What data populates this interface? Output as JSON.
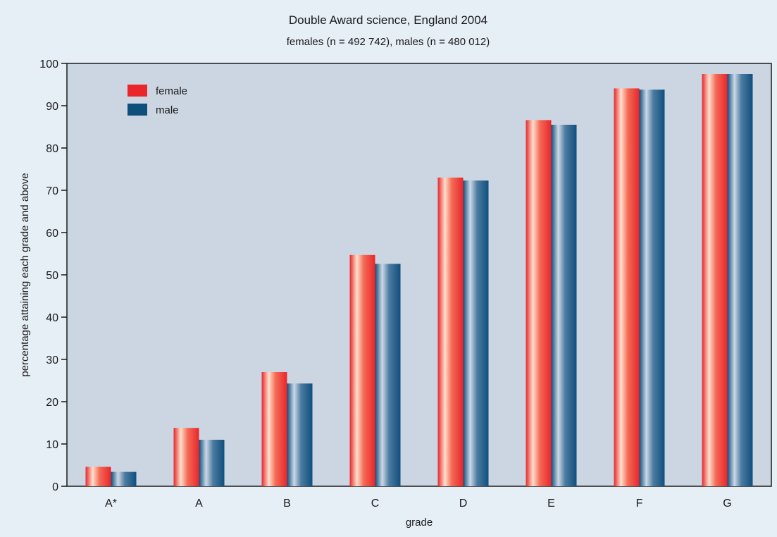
{
  "chart_data": {
    "type": "bar",
    "title": "Double Award science, England 2004",
    "subtitle": "females (n = 492 742), males (n = 480 012)",
    "xlabel": "grade",
    "ylabel": "percentage attaining each grade and above",
    "categories": [
      "A*",
      "A",
      "B",
      "C",
      "D",
      "E",
      "F",
      "G"
    ],
    "series": [
      {
        "name": "female",
        "color": "#e8262b",
        "values": [
          4.6,
          13.8,
          27.0,
          54.7,
          73.0,
          86.6,
          94.1,
          97.5
        ]
      },
      {
        "name": "male",
        "color": "#0e4f7c",
        "values": [
          3.4,
          11.0,
          24.3,
          52.6,
          72.3,
          85.5,
          93.8,
          97.5
        ]
      }
    ],
    "ylim": [
      0,
      100
    ],
    "yticks": [
      0,
      10,
      20,
      30,
      40,
      50,
      60,
      70,
      80,
      90,
      100
    ],
    "grid": false,
    "legend_position": "top-left",
    "colors": {
      "plot_background": "#ccd6e2",
      "page_background": "#e6eef6"
    }
  }
}
